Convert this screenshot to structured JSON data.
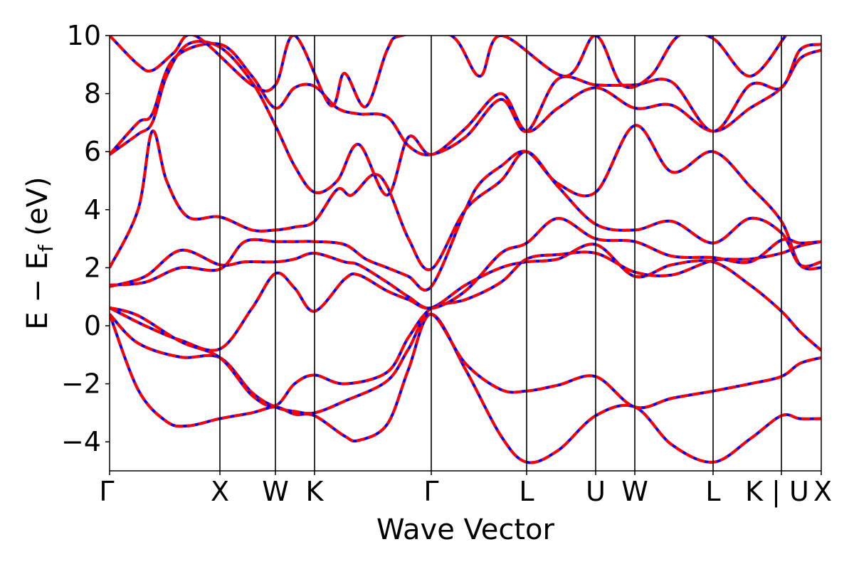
{
  "chart_data": {
    "type": "line",
    "title": "",
    "xlabel": "Wave Vector",
    "ylabel_main": "E − E",
    "ylabel_sub": "f",
    "ylabel_unit": " (eV)",
    "ylim": [
      -5,
      10
    ],
    "yticks": [
      -4,
      -2,
      0,
      2,
      4,
      6,
      8,
      10
    ],
    "ytick_labels": [
      "−4",
      "−2",
      "0",
      "2",
      "4",
      "6",
      "8",
      "10"
    ],
    "xlim": [
      0,
      1
    ],
    "high_symmetry_points": [
      {
        "label": "Γ",
        "x": 0.0
      },
      {
        "label": "X",
        "x": 0.155
      },
      {
        "label": "W",
        "x": 0.233
      },
      {
        "label": "K",
        "x": 0.288
      },
      {
        "label": "Γ",
        "x": 0.452
      },
      {
        "label": "L",
        "x": 0.586
      },
      {
        "label": "U",
        "x": 0.683
      },
      {
        "label": "W",
        "x": 0.738
      },
      {
        "label": "L",
        "x": 0.848
      },
      {
        "label": "K | U",
        "x": 0.944
      },
      {
        "label": "X",
        "x": 1.0
      }
    ],
    "grid": false,
    "legend": "none",
    "colors": {
      "dft": "#0000ff",
      "tb": "#ff0000",
      "vline": "#000000"
    },
    "series": [
      {
        "values": [
          [
            0,
            0.4
          ],
          [
            0.04,
            -2.2
          ],
          [
            0.08,
            -3.3
          ],
          [
            0.11,
            -3.45
          ],
          [
            0.155,
            -3.2
          ],
          [
            0.2,
            -3.0
          ],
          [
            0.233,
            -2.8
          ],
          [
            0.26,
            -3.05
          ],
          [
            0.288,
            -3.1
          ],
          [
            0.33,
            -3.8
          ],
          [
            0.35,
            -3.95
          ],
          [
            0.39,
            -3.4
          ],
          [
            0.42,
            -1.5
          ],
          [
            0.452,
            0.4
          ],
          [
            0.5,
            -1.5
          ],
          [
            0.55,
            -3.8
          ],
          [
            0.586,
            -4.7
          ],
          [
            0.63,
            -4.3
          ],
          [
            0.683,
            -3.1
          ],
          [
            0.738,
            -2.8
          ],
          [
            0.79,
            -4.1
          ],
          [
            0.848,
            -4.7
          ],
          [
            0.9,
            -3.9
          ],
          [
            0.944,
            -3.1
          ],
          [
            0.97,
            -3.2
          ],
          [
            1.0,
            -3.2
          ]
        ]
      },
      {
        "values": [
          [
            0,
            0.4
          ],
          [
            0.04,
            -0.6
          ],
          [
            0.1,
            -1.08
          ],
          [
            0.155,
            -1.1
          ],
          [
            0.2,
            -2.3
          ],
          [
            0.233,
            -2.8
          ],
          [
            0.26,
            -2.95
          ],
          [
            0.288,
            -3.0
          ],
          [
            0.33,
            -2.6
          ],
          [
            0.39,
            -1.9
          ],
          [
            0.42,
            -0.8
          ],
          [
            0.452,
            0.4
          ],
          [
            0.5,
            -1.3
          ],
          [
            0.55,
            -2.2
          ],
          [
            0.586,
            -2.25
          ],
          [
            0.63,
            -2.05
          ],
          [
            0.683,
            -1.75
          ],
          [
            0.738,
            -2.8
          ],
          [
            0.79,
            -2.5
          ],
          [
            0.848,
            -2.25
          ],
          [
            0.9,
            -2.0
          ],
          [
            0.944,
            -1.75
          ],
          [
            0.97,
            -1.3
          ],
          [
            1.0,
            -1.1
          ]
        ]
      },
      {
        "values": [
          [
            0,
            0.62
          ],
          [
            0.05,
            0.0
          ],
          [
            0.1,
            -0.5
          ],
          [
            0.155,
            -0.8
          ],
          [
            0.2,
            0.6
          ],
          [
            0.233,
            1.8
          ],
          [
            0.26,
            1.3
          ],
          [
            0.288,
            0.5
          ],
          [
            0.33,
            1.6
          ],
          [
            0.35,
            1.75
          ],
          [
            0.39,
            1.2
          ],
          [
            0.42,
            0.9
          ],
          [
            0.452,
            0.62
          ],
          [
            0.5,
            1.4
          ],
          [
            0.55,
            2.0
          ],
          [
            0.586,
            2.2
          ],
          [
            0.63,
            2.3
          ],
          [
            0.683,
            2.8
          ],
          [
            0.738,
            1.7
          ],
          [
            0.79,
            2.1
          ],
          [
            0.848,
            2.2
          ],
          [
            0.9,
            1.4
          ],
          [
            0.944,
            0.5
          ],
          [
            0.97,
            -0.2
          ],
          [
            1.0,
            -0.85
          ]
        ]
      },
      {
        "values": [
          [
            0,
            0.62
          ],
          [
            0.04,
            0.35
          ],
          [
            0.1,
            -0.55
          ],
          [
            0.155,
            -1.1
          ],
          [
            0.2,
            -2.4
          ],
          [
            0.233,
            -2.75
          ],
          [
            0.26,
            -2.0
          ],
          [
            0.288,
            -1.7
          ],
          [
            0.33,
            -2.0
          ],
          [
            0.39,
            -1.6
          ],
          [
            0.42,
            -0.4
          ],
          [
            0.452,
            0.6
          ],
          [
            0.5,
            0.9
          ],
          [
            0.55,
            1.5
          ],
          [
            0.586,
            2.3
          ],
          [
            0.63,
            2.45
          ],
          [
            0.683,
            2.5
          ],
          [
            0.738,
            1.85
          ],
          [
            0.79,
            1.75
          ],
          [
            0.848,
            2.25
          ],
          [
            0.9,
            2.3
          ],
          [
            0.944,
            2.5
          ],
          [
            0.97,
            2.75
          ],
          [
            1.0,
            2.9
          ]
        ]
      },
      {
        "values": [
          [
            0,
            1.35
          ],
          [
            0.05,
            1.7
          ],
          [
            0.1,
            2.6
          ],
          [
            0.155,
            2.1
          ],
          [
            0.19,
            2.2
          ],
          [
            0.233,
            2.2
          ],
          [
            0.26,
            2.3
          ],
          [
            0.288,
            2.5
          ],
          [
            0.33,
            2.2
          ],
          [
            0.35,
            2.1
          ],
          [
            0.39,
            1.5
          ],
          [
            0.42,
            1.0
          ],
          [
            0.452,
            0.6
          ],
          [
            0.5,
            1.2
          ],
          [
            0.55,
            2.5
          ],
          [
            0.586,
            2.85
          ],
          [
            0.63,
            3.7
          ],
          [
            0.683,
            3.0
          ],
          [
            0.738,
            2.9
          ],
          [
            0.79,
            2.4
          ],
          [
            0.848,
            2.35
          ],
          [
            0.9,
            2.2
          ],
          [
            0.944,
            2.95
          ],
          [
            0.97,
            2.85
          ],
          [
            1.0,
            2.9
          ]
        ]
      },
      {
        "values": [
          [
            0,
            1.4
          ],
          [
            0.05,
            1.5
          ],
          [
            0.1,
            2.0
          ],
          [
            0.155,
            1.95
          ],
          [
            0.19,
            2.9
          ],
          [
            0.233,
            2.9
          ],
          [
            0.26,
            2.9
          ],
          [
            0.288,
            2.9
          ],
          [
            0.33,
            2.8
          ],
          [
            0.36,
            2.3
          ],
          [
            0.39,
            2.0
          ],
          [
            0.42,
            1.7
          ],
          [
            0.452,
            1.35
          ],
          [
            0.5,
            4.0
          ],
          [
            0.52,
            4.9
          ],
          [
            0.55,
            5.5
          ],
          [
            0.586,
            6.0
          ],
          [
            0.63,
            4.9
          ],
          [
            0.683,
            4.6
          ],
          [
            0.738,
            6.9
          ],
          [
            0.79,
            5.3
          ],
          [
            0.848,
            6.0
          ],
          [
            0.9,
            4.8
          ],
          [
            0.944,
            3.6
          ],
          [
            0.97,
            2.1
          ],
          [
            1.0,
            2.0
          ]
        ]
      },
      {
        "values": [
          [
            0,
            2.0
          ],
          [
            0.04,
            4.0
          ],
          [
            0.06,
            6.7
          ],
          [
            0.08,
            5.0
          ],
          [
            0.11,
            3.75
          ],
          [
            0.155,
            3.75
          ],
          [
            0.2,
            3.3
          ],
          [
            0.233,
            3.3
          ],
          [
            0.26,
            3.4
          ],
          [
            0.288,
            3.6
          ],
          [
            0.32,
            4.7
          ],
          [
            0.34,
            4.5
          ],
          [
            0.37,
            5.2
          ],
          [
            0.39,
            4.8
          ],
          [
            0.42,
            3.0
          ],
          [
            0.452,
            1.95
          ],
          [
            0.5,
            4.0
          ],
          [
            0.55,
            5.0
          ],
          [
            0.586,
            6.0
          ],
          [
            0.63,
            4.8
          ],
          [
            0.683,
            3.5
          ],
          [
            0.738,
            3.3
          ],
          [
            0.79,
            3.6
          ],
          [
            0.848,
            2.85
          ],
          [
            0.9,
            3.7
          ],
          [
            0.944,
            3.2
          ],
          [
            0.97,
            2.1
          ],
          [
            1.0,
            2.2
          ]
        ]
      },
      {
        "values": [
          [
            0,
            5.9
          ],
          [
            0.04,
            6.6
          ],
          [
            0.06,
            7.0
          ],
          [
            0.08,
            8.6
          ],
          [
            0.11,
            9.7
          ],
          [
            0.155,
            9.6
          ],
          [
            0.2,
            8.4
          ],
          [
            0.233,
            6.9
          ],
          [
            0.26,
            5.5
          ],
          [
            0.288,
            4.6
          ],
          [
            0.32,
            5.0
          ],
          [
            0.35,
            6.25
          ],
          [
            0.39,
            4.5
          ],
          [
            0.42,
            6.5
          ],
          [
            0.452,
            5.9
          ],
          [
            0.5,
            6.8
          ],
          [
            0.55,
            8.0
          ],
          [
            0.586,
            6.7
          ],
          [
            0.63,
            7.5
          ],
          [
            0.683,
            8.2
          ],
          [
            0.738,
            7.5
          ],
          [
            0.79,
            7.6
          ],
          [
            0.848,
            6.7
          ],
          [
            0.9,
            7.5
          ],
          [
            0.944,
            8.2
          ],
          [
            0.97,
            9.2
          ],
          [
            1.0,
            9.5
          ]
        ]
      },
      {
        "values": [
          [
            0,
            5.9
          ],
          [
            0.04,
            7.0
          ],
          [
            0.06,
            7.3
          ],
          [
            0.09,
            9.2
          ],
          [
            0.155,
            9.7
          ],
          [
            0.2,
            8.6
          ],
          [
            0.233,
            7.5
          ],
          [
            0.26,
            8.2
          ],
          [
            0.288,
            8.25
          ],
          [
            0.32,
            7.5
          ],
          [
            0.35,
            7.3
          ],
          [
            0.39,
            7.2
          ],
          [
            0.42,
            6.2
          ],
          [
            0.452,
            5.9
          ],
          [
            0.5,
            6.5
          ],
          [
            0.55,
            7.8
          ],
          [
            0.586,
            6.7
          ],
          [
            0.63,
            8.5
          ],
          [
            0.683,
            8.3
          ],
          [
            0.738,
            8.3
          ],
          [
            0.79,
            8.4
          ],
          [
            0.848,
            6.7
          ],
          [
            0.9,
            8.3
          ],
          [
            0.944,
            8.2
          ],
          [
            0.97,
            9.5
          ],
          [
            1.0,
            9.7
          ]
        ]
      },
      {
        "values": [
          [
            0,
            10.0
          ],
          [
            0.04,
            9.0
          ],
          [
            0.06,
            8.8
          ],
          [
            0.09,
            9.4
          ],
          [
            0.12,
            10.0
          ],
          [
            0.2,
            8.3
          ],
          [
            0.233,
            8.3
          ],
          [
            0.26,
            10.0
          ],
          [
            0.31,
            7.6
          ],
          [
            0.33,
            8.7
          ],
          [
            0.36,
            7.55
          ],
          [
            0.39,
            9.5
          ],
          [
            0.41,
            10.0
          ],
          [
            0.48,
            10.0
          ],
          [
            0.52,
            8.6
          ],
          [
            0.55,
            10.0
          ],
          [
            0.64,
            8.6
          ],
          [
            0.683,
            10.0
          ],
          [
            0.72,
            8.3
          ],
          [
            0.76,
            8.6
          ],
          [
            0.8,
            10.0
          ],
          [
            0.848,
            9.9
          ],
          [
            0.9,
            8.6
          ],
          [
            0.95,
            10.0
          ]
        ]
      }
    ]
  }
}
